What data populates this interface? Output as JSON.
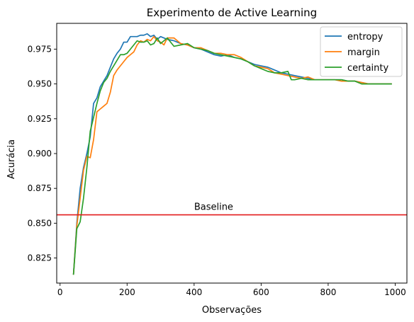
{
  "chart_data": {
    "type": "line",
    "title": "Experimento de Active Learning",
    "xlabel": "Observações",
    "ylabel": "Acurácia",
    "xlim": [
      -10,
      1035
    ],
    "ylim": [
      0.807,
      0.9935
    ],
    "xticks": [
      0,
      200,
      400,
      600,
      800,
      1000
    ],
    "yticks": [
      0.825,
      0.85,
      0.875,
      0.9,
      0.925,
      0.95,
      0.975
    ],
    "ytick_labels": [
      "0.825",
      "0.850",
      "0.875",
      "0.900",
      "0.925",
      "0.950",
      "0.975"
    ],
    "xtick_labels": [
      "0",
      "200",
      "400",
      "600",
      "800",
      "1000"
    ],
    "grid": false,
    "legend_position": "top-right",
    "baseline": {
      "y": 0.856,
      "label": "Baseline",
      "color": "#e31a1c",
      "label_x": 400
    },
    "series": [
      {
        "name": "entropy",
        "color": "#1f77b4",
        "x": [
          40,
          50,
          60,
          70,
          80,
          90,
          100,
          110,
          120,
          130,
          140,
          150,
          160,
          170,
          180,
          190,
          200,
          210,
          220,
          230,
          240,
          250,
          260,
          270,
          280,
          290,
          300,
          320,
          340,
          360,
          380,
          400,
          420,
          440,
          460,
          480,
          500,
          520,
          540,
          560,
          580,
          600,
          620,
          640,
          660,
          680,
          700,
          720,
          740,
          760,
          780,
          800,
          820,
          840,
          860,
          880,
          900,
          920,
          940,
          960,
          980,
          990
        ],
        "values": [
          0.813,
          0.85,
          0.875,
          0.89,
          0.9,
          0.912,
          0.936,
          0.94,
          0.948,
          0.952,
          0.956,
          0.962,
          0.968,
          0.972,
          0.975,
          0.98,
          0.98,
          0.984,
          0.984,
          0.984,
          0.985,
          0.985,
          0.986,
          0.984,
          0.985,
          0.982,
          0.984,
          0.982,
          0.981,
          0.979,
          0.978,
          0.976,
          0.975,
          0.973,
          0.971,
          0.97,
          0.971,
          0.969,
          0.968,
          0.966,
          0.964,
          0.963,
          0.962,
          0.96,
          0.958,
          0.957,
          0.956,
          0.955,
          0.954,
          0.953,
          0.953,
          0.953,
          0.953,
          0.953,
          0.952,
          0.952,
          0.951,
          0.95,
          0.95,
          0.95,
          0.95,
          0.95
        ]
      },
      {
        "name": "margin",
        "color": "#ff7f0e",
        "x": [
          40,
          50,
          60,
          70,
          80,
          90,
          100,
          110,
          120,
          130,
          140,
          150,
          160,
          170,
          180,
          190,
          200,
          210,
          220,
          230,
          240,
          250,
          260,
          270,
          280,
          290,
          300,
          310,
          320,
          340,
          360,
          380,
          400,
          420,
          440,
          460,
          480,
          500,
          520,
          540,
          560,
          580,
          600,
          620,
          640,
          660,
          680,
          700,
          720,
          740,
          760,
          780,
          800,
          820,
          840,
          860,
          880,
          900,
          920,
          940,
          960,
          980,
          990
        ],
        "values": [
          0.813,
          0.848,
          0.868,
          0.888,
          0.898,
          0.897,
          0.91,
          0.93,
          0.932,
          0.934,
          0.936,
          0.944,
          0.956,
          0.96,
          0.963,
          0.966,
          0.969,
          0.971,
          0.973,
          0.978,
          0.981,
          0.98,
          0.982,
          0.981,
          0.984,
          0.981,
          0.98,
          0.978,
          0.983,
          0.983,
          0.979,
          0.978,
          0.976,
          0.976,
          0.974,
          0.972,
          0.972,
          0.971,
          0.971,
          0.969,
          0.966,
          0.963,
          0.962,
          0.961,
          0.958,
          0.957,
          0.956,
          0.955,
          0.954,
          0.955,
          0.953,
          0.953,
          0.953,
          0.953,
          0.952,
          0.952,
          0.952,
          0.951,
          0.95,
          0.95,
          0.95,
          0.95,
          0.95
        ]
      },
      {
        "name": "certainty",
        "color": "#2ca02c",
        "x": [
          40,
          50,
          60,
          70,
          80,
          90,
          100,
          110,
          120,
          130,
          140,
          150,
          160,
          170,
          180,
          190,
          200,
          210,
          220,
          230,
          240,
          250,
          260,
          270,
          280,
          290,
          300,
          310,
          320,
          340,
          360,
          380,
          400,
          420,
          440,
          460,
          480,
          500,
          520,
          540,
          560,
          580,
          600,
          620,
          640,
          660,
          680,
          690,
          700,
          720,
          740,
          760,
          780,
          800,
          820,
          840,
          860,
          880,
          900,
          920,
          940,
          960,
          980,
          990
        ],
        "values": [
          0.813,
          0.846,
          0.851,
          0.868,
          0.89,
          0.916,
          0.926,
          0.936,
          0.945,
          0.951,
          0.954,
          0.959,
          0.963,
          0.967,
          0.971,
          0.971,
          0.972,
          0.975,
          0.978,
          0.981,
          0.98,
          0.98,
          0.981,
          0.978,
          0.979,
          0.983,
          0.979,
          0.981,
          0.983,
          0.977,
          0.978,
          0.979,
          0.976,
          0.975,
          0.974,
          0.972,
          0.971,
          0.97,
          0.969,
          0.968,
          0.966,
          0.963,
          0.961,
          0.959,
          0.958,
          0.958,
          0.959,
          0.953,
          0.953,
          0.954,
          0.953,
          0.953,
          0.953,
          0.953,
          0.953,
          0.953,
          0.952,
          0.952,
          0.95,
          0.95,
          0.95,
          0.95,
          0.95,
          0.95
        ]
      }
    ]
  }
}
